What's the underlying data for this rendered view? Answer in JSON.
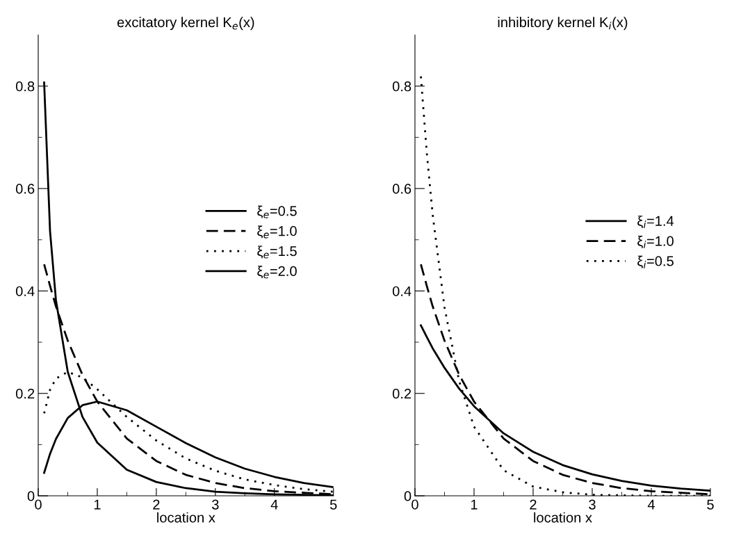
{
  "chart_data": [
    {
      "type": "line",
      "title": "excitatory kernel K$_{e}$(x)",
      "xlabel": "location x",
      "x": [
        0.1,
        0.2,
        0.3,
        0.5,
        0.75,
        1,
        1.5,
        2,
        2.5,
        3,
        3.5,
        4,
        4.5,
        5
      ],
      "xlim": [
        0,
        5
      ],
      "xticks": [
        0,
        {
          "value": 0.5,
          "label": null
        },
        1,
        {
          "value": 1.5,
          "label": null
        },
        2,
        {
          "value": 2.5,
          "label": null
        },
        3,
        {
          "value": 3.5,
          "label": null
        },
        4,
        {
          "value": 4.5,
          "label": null
        },
        5
      ],
      "ylim": [
        0,
        0.9
      ],
      "yticks": [
        0,
        {
          "value": 0.1,
          "label": null
        },
        0.2,
        {
          "value": 0.3,
          "label": null
        },
        0.4,
        {
          "value": 0.5,
          "label": null
        },
        0.6,
        {
          "value": 0.7,
          "label": null
        },
        0.8
      ],
      "grid": false,
      "legend": "right",
      "marker": "none",
      "series": [
        {
          "name": "ξ$_{e}$=0.5",
          "color": "#000000",
          "line_style": "solid",
          "values": [
            0.807,
            0.517,
            0.382,
            0.242,
            0.154,
            0.104,
            0.051,
            0.027,
            0.015,
            0.008,
            0.005,
            0.003,
            0.002,
            0.001
          ]
        },
        {
          "name": "ξ$_{e}$=1.0",
          "color": "#000000",
          "line_style": "dashed",
          "values": [
            0.452,
            0.41,
            0.37,
            0.303,
            0.236,
            0.184,
            0.112,
            0.068,
            0.041,
            0.025,
            0.015,
            0.009,
            0.006,
            0.003
          ]
        },
        {
          "name": "ξ$_{e}$=1.5",
          "color": "#000000",
          "line_style": "dotted",
          "values": [
            0.161,
            0.207,
            0.229,
            0.242,
            0.231,
            0.208,
            0.154,
            0.108,
            0.073,
            0.049,
            0.032,
            0.021,
            0.013,
            0.008
          ]
        },
        {
          "name": "ξ$_{e}$=2.0",
          "color": "#000000",
          "line_style": "solid",
          "values": [
            0.045,
            0.082,
            0.111,
            0.152,
            0.177,
            0.184,
            0.167,
            0.135,
            0.103,
            0.075,
            0.053,
            0.037,
            0.025,
            0.017
          ]
        }
      ]
    },
    {
      "type": "line",
      "title": "inhibitory kernel K$_{i}$(x)",
      "xlabel": "location x",
      "x": [
        0.1,
        0.2,
        0.3,
        0.5,
        0.75,
        1,
        1.5,
        2,
        2.5,
        3,
        3.5,
        4,
        4.5,
        5
      ],
      "xlim": [
        0,
        5
      ],
      "xticks": [
        0,
        {
          "value": 0.5,
          "label": null
        },
        1,
        {
          "value": 1.5,
          "label": null
        },
        2,
        {
          "value": 2.5,
          "label": null
        },
        3,
        {
          "value": 3.5,
          "label": null
        },
        4,
        {
          "value": 4.5,
          "label": null
        },
        5
      ],
      "ylim": [
        0,
        0.9
      ],
      "yticks": [
        0,
        {
          "value": 0.1,
          "label": null
        },
        0.2,
        {
          "value": 0.3,
          "label": null
        },
        0.4,
        {
          "value": 0.5,
          "label": null
        },
        0.6,
        {
          "value": 0.7,
          "label": null
        },
        0.8
      ],
      "grid": false,
      "legend": "right",
      "marker": "none",
      "series": [
        {
          "name": "ξ$_{i}$=1.4",
          "color": "#000000",
          "line_style": "solid",
          "values": [
            0.333,
            0.31,
            0.288,
            0.25,
            0.209,
            0.175,
            0.122,
            0.086,
            0.06,
            0.042,
            0.029,
            0.02,
            0.014,
            0.01
          ]
        },
        {
          "name": "ξ$_{i}$=1.0",
          "color": "#000000",
          "line_style": "dashed",
          "values": [
            0.452,
            0.41,
            0.37,
            0.303,
            0.236,
            0.184,
            0.112,
            0.068,
            0.041,
            0.025,
            0.015,
            0.009,
            0.006,
            0.003
          ]
        },
        {
          "name": "ξ$_{i}$=0.5",
          "color": "#000000",
          "line_style": "dotted",
          "values": [
            0.819,
            0.67,
            0.549,
            0.368,
            0.223,
            0.135,
            0.05,
            0.018,
            0.007,
            0.002,
            0.001,
            0.0,
            0.0,
            0.0
          ]
        }
      ]
    }
  ]
}
